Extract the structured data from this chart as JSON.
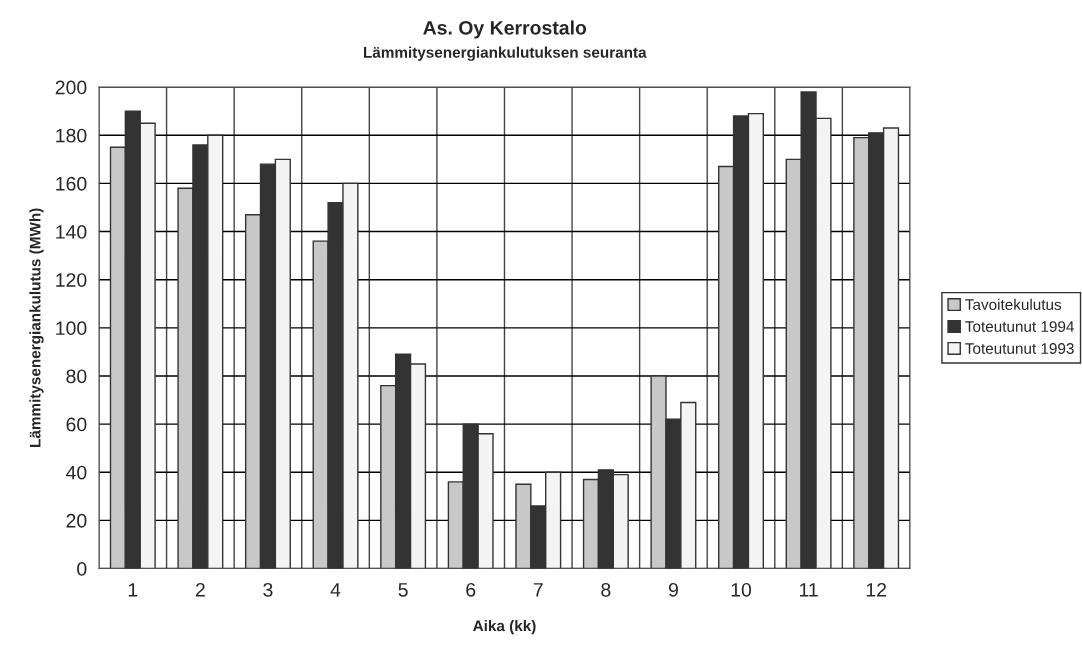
{
  "chart_data": {
    "type": "bar",
    "title": "As. Oy Kerrostalo",
    "subtitle": "Lämmitysenergiankulutuksen seuranta",
    "xlabel": "Aika (kk)",
    "ylabel": "Lämmitysenergiankulutus (MWh)",
    "categories": [
      "1",
      "2",
      "3",
      "4",
      "5",
      "6",
      "7",
      "8",
      "9",
      "10",
      "11",
      "12"
    ],
    "series": [
      {
        "name": "Tavoitekulutus",
        "color": "#c8c8c8",
        "values": [
          175,
          158,
          147,
          136,
          76,
          36,
          35,
          37,
          80,
          167,
          170,
          179
        ]
      },
      {
        "name": "Toteutunut 1994",
        "color": "#333333",
        "values": [
          190,
          176,
          168,
          152,
          89,
          60,
          26,
          41,
          62,
          188,
          198,
          181
        ]
      },
      {
        "name": "Toteutunut 1993",
        "color": "#f4f4f4",
        "values": [
          185,
          180,
          170,
          160,
          85,
          56,
          40,
          39,
          69,
          189,
          187,
          183
        ]
      }
    ],
    "ylim": [
      0,
      200
    ],
    "yticks": [
      0,
      20,
      40,
      60,
      80,
      100,
      120,
      140,
      160,
      180,
      200
    ],
    "grid": true,
    "legend": "right"
  }
}
